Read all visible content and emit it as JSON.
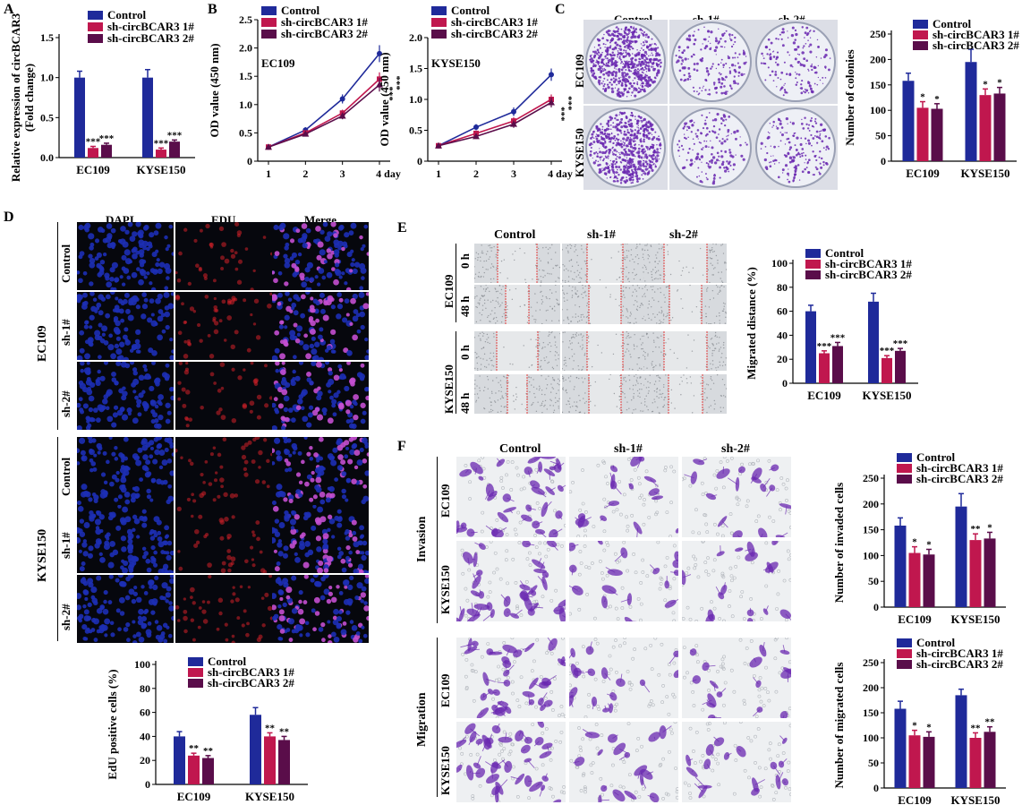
{
  "colors": {
    "control": "#1f2a9a",
    "sh1": "#c0174e",
    "sh2": "#5a0d4a",
    "dapi": "#1d2fb5",
    "edu": "#d6202a",
    "crystal": "#6a28b0",
    "scratch": "#e03a3a"
  },
  "legend": {
    "control": "Control",
    "sh1": "sh-circBCAR3 1#",
    "sh2": "sh-circBCAR3 2#"
  },
  "panels": {
    "A": {
      "letter": "A"
    },
    "B": {
      "letter": "B",
      "ylabel": "OD value (450 nm)",
      "left_title": "EC109",
      "right_title": "KYSE150",
      "sig": "***"
    },
    "C": {
      "letter": "C",
      "cols": [
        "Control",
        "sh-1#",
        "sh-2#"
      ],
      "rows": [
        "EC109",
        "KYSE150"
      ],
      "ylabel": "Number of colonies"
    },
    "D": {
      "letter": "D",
      "cols": [
        "DAPI",
        "EDU",
        "Merge"
      ],
      "cell_lines": [
        "EC109",
        "KYSE150"
      ],
      "rows": [
        "Control",
        "sh-1#",
        "sh-2#"
      ],
      "ylabel": "EdU positive cells (%)"
    },
    "E": {
      "letter": "E",
      "cols": [
        "Control",
        "sh-1#",
        "sh-2#"
      ],
      "cell_lines": [
        "EC109",
        "KYSE150"
      ],
      "times": [
        "0 h",
        "48 h"
      ],
      "ylabel": "Migrated distance (%)"
    },
    "F": {
      "letter": "F",
      "cols": [
        "Control",
        "sh-1#",
        "sh-2#"
      ],
      "cell_lines": [
        "EC109",
        "KYSE150"
      ],
      "groups": [
        "Invasion",
        "Migration"
      ],
      "ylabel_inv": "Number of invaded cells",
      "ylabel_mig": "Number of migrated cells"
    }
  },
  "chart_data": [
    {
      "id": "A",
      "type": "bar",
      "ylabel": "Relative expression of circBCAR3 (Fold change)",
      "categories": [
        "EC109",
        "KYSE150"
      ],
      "ylim": [
        0,
        1.5
      ],
      "yticks": [
        "0.0",
        "0.5",
        "1.0",
        "1.5"
      ],
      "series": [
        {
          "name": "Control",
          "values": [
            1.0,
            1.0
          ],
          "err": [
            0.08,
            0.1
          ]
        },
        {
          "name": "sh-circBCAR3 1#",
          "values": [
            0.12,
            0.1
          ],
          "err": [
            0.02,
            0.02
          ]
        },
        {
          "name": "sh-circBCAR3 2#",
          "values": [
            0.16,
            0.2
          ],
          "err": [
            0.02,
            0.02
          ]
        }
      ],
      "annotations": [
        [
          "",
          "***",
          "***"
        ],
        [
          "",
          "***",
          "***"
        ]
      ]
    },
    {
      "id": "B-EC109",
      "type": "line",
      "title": "EC109",
      "ylabel": "OD value (450 nm)",
      "x": [
        "1",
        "2",
        "3",
        "4 day"
      ],
      "ylim": [
        0,
        2.5
      ],
      "yticks": [
        "0",
        "0.5",
        "1.0",
        "1.5",
        "2.0",
        "2.5"
      ],
      "series": [
        {
          "name": "Control",
          "values": [
            0.25,
            0.55,
            1.1,
            1.9
          ],
          "err": [
            0.03,
            0.05,
            0.08,
            0.15
          ]
        },
        {
          "name": "sh-circBCAR3 1#",
          "values": [
            0.25,
            0.5,
            0.85,
            1.45
          ],
          "err": [
            0.03,
            0.04,
            0.06,
            0.12
          ]
        },
        {
          "name": "sh-circBCAR3 2#",
          "values": [
            0.25,
            0.48,
            0.8,
            1.35
          ],
          "err": [
            0.03,
            0.04,
            0.06,
            0.12
          ]
        }
      ]
    },
    {
      "id": "B-KYSE150",
      "type": "line",
      "title": "KYSE150",
      "ylabel": "OD value (450 nm)",
      "x": [
        "1",
        "2",
        "3",
        "4 day"
      ],
      "ylim": [
        0,
        2.0
      ],
      "yticks": [
        "0",
        "0.5",
        "1.0",
        "1.5",
        "2.0"
      ],
      "series": [
        {
          "name": "Control",
          "values": [
            0.25,
            0.55,
            0.8,
            1.4
          ],
          "err": [
            0.03,
            0.05,
            0.07,
            0.1
          ]
        },
        {
          "name": "sh-circBCAR3 1#",
          "values": [
            0.25,
            0.45,
            0.65,
            1.0
          ],
          "err": [
            0.03,
            0.04,
            0.06,
            0.08
          ]
        },
        {
          "name": "sh-circBCAR3 2#",
          "values": [
            0.25,
            0.4,
            0.6,
            0.95
          ],
          "err": [
            0.03,
            0.04,
            0.06,
            0.08
          ]
        }
      ]
    },
    {
      "id": "C",
      "type": "bar",
      "ylabel": "Number of colonies",
      "categories": [
        "EC109",
        "KYSE150"
      ],
      "ylim": [
        0,
        250
      ],
      "yticks": [
        "0",
        "50",
        "100",
        "150",
        "200",
        "250"
      ],
      "series": [
        {
          "name": "Control",
          "values": [
            158,
            195
          ],
          "err": [
            15,
            25
          ]
        },
        {
          "name": "sh-circBCAR3 1#",
          "values": [
            105,
            130
          ],
          "err": [
            12,
            12
          ]
        },
        {
          "name": "sh-circBCAR3 2#",
          "values": [
            103,
            133
          ],
          "err": [
            10,
            12
          ]
        }
      ],
      "annotations": [
        [
          "",
          "*",
          "*"
        ],
        [
          "",
          "*",
          "*"
        ]
      ]
    },
    {
      "id": "D",
      "type": "bar",
      "ylabel": "EdU positive cells (%)",
      "categories": [
        "EC109",
        "KYSE150"
      ],
      "ylim": [
        0,
        100
      ],
      "yticks": [
        "0",
        "20",
        "40",
        "60",
        "80",
        "100"
      ],
      "series": [
        {
          "name": "Control",
          "values": [
            40,
            58
          ],
          "err": [
            4,
            6
          ]
        },
        {
          "name": "sh-circBCAR3 1#",
          "values": [
            24,
            40
          ],
          "err": [
            2,
            3
          ]
        },
        {
          "name": "sh-circBCAR3 2#",
          "values": [
            22,
            37
          ],
          "err": [
            2,
            3
          ]
        }
      ],
      "annotations": [
        [
          "",
          "**",
          "**"
        ],
        [
          "",
          "**",
          "**"
        ]
      ]
    },
    {
      "id": "E",
      "type": "bar",
      "ylabel": "Migrated distance (%)",
      "categories": [
        "EC109",
        "KYSE150"
      ],
      "ylim": [
        0,
        100
      ],
      "yticks": [
        "0",
        "20",
        "40",
        "60",
        "80",
        "100"
      ],
      "series": [
        {
          "name": "Control",
          "values": [
            60,
            68
          ],
          "err": [
            5,
            7
          ]
        },
        {
          "name": "sh-circBCAR3 1#",
          "values": [
            25,
            21
          ],
          "err": [
            2,
            2
          ]
        },
        {
          "name": "sh-circBCAR3 2#",
          "values": [
            31,
            27
          ],
          "err": [
            3,
            2
          ]
        }
      ],
      "annotations": [
        [
          "",
          "***",
          "***"
        ],
        [
          "",
          "***",
          "***"
        ]
      ]
    },
    {
      "id": "F-inv",
      "type": "bar",
      "ylabel": "Number of invaded cells",
      "categories": [
        "EC109",
        "KYSE150"
      ],
      "ylim": [
        0,
        250
      ],
      "yticks": [
        "0",
        "50",
        "100",
        "150",
        "200",
        "250"
      ],
      "series": [
        {
          "name": "Control",
          "values": [
            158,
            195
          ],
          "err": [
            15,
            25
          ]
        },
        {
          "name": "sh-circBCAR3 1#",
          "values": [
            105,
            130
          ],
          "err": [
            12,
            12
          ]
        },
        {
          "name": "sh-circBCAR3 2#",
          "values": [
            102,
            133
          ],
          "err": [
            10,
            12
          ]
        }
      ],
      "annotations": [
        [
          "",
          "*",
          "*"
        ],
        [
          "",
          "**",
          "*"
        ]
      ]
    },
    {
      "id": "F-mig",
      "type": "bar",
      "ylabel": "Number of migrated cells",
      "categories": [
        "EC109",
        "KYSE150"
      ],
      "ylim": [
        0,
        250
      ],
      "yticks": [
        "0",
        "50",
        "100",
        "150",
        "200",
        "250"
      ],
      "series": [
        {
          "name": "Control",
          "values": [
            158,
            185
          ],
          "err": [
            15,
            12
          ]
        },
        {
          "name": "sh-circBCAR3 1#",
          "values": [
            105,
            100
          ],
          "err": [
            10,
            10
          ]
        },
        {
          "name": "sh-circBCAR3 2#",
          "values": [
            102,
            112
          ],
          "err": [
            10,
            10
          ]
        }
      ],
      "annotations": [
        [
          "",
          "*",
          "*"
        ],
        [
          "",
          "**",
          "**"
        ]
      ]
    }
  ]
}
